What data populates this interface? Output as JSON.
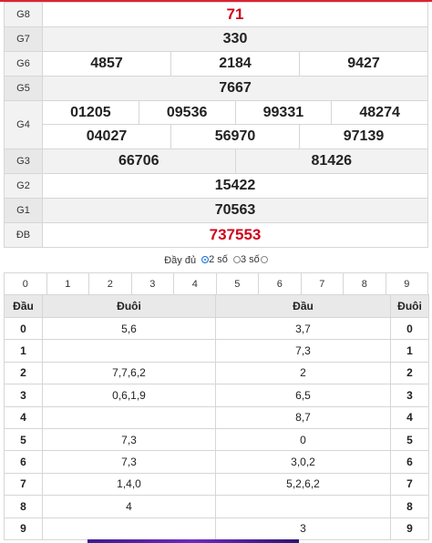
{
  "prizes": {
    "g8": {
      "label": "G8",
      "values": [
        "71"
      ]
    },
    "g7": {
      "label": "G7",
      "values": [
        "330"
      ]
    },
    "g6": {
      "label": "G6",
      "values": [
        "4857",
        "2184",
        "9427"
      ]
    },
    "g5": {
      "label": "G5",
      "values": [
        "7667"
      ]
    },
    "g4": {
      "label": "G4",
      "values": [
        "01205",
        "09536",
        "99331",
        "48274",
        "04027",
        "56970",
        "97139"
      ]
    },
    "g3": {
      "label": "G3",
      "values": [
        "66706",
        "81426"
      ]
    },
    "g2": {
      "label": "G2",
      "values": [
        "15422"
      ]
    },
    "g1": {
      "label": "G1",
      "values": [
        "70563"
      ]
    },
    "db": {
      "label": "ĐB",
      "values": [
        "737553"
      ]
    }
  },
  "mode": {
    "full": "Đầy đủ",
    "two": "2 số",
    "three": "3 số",
    "selected": "two"
  },
  "digit_filter": [
    "0",
    "1",
    "2",
    "3",
    "4",
    "5",
    "6",
    "7",
    "8",
    "9"
  ],
  "loto": {
    "headers": {
      "dau": "Đầu",
      "duoi": "Đuôi",
      "dau2": "Đầu",
      "duoi2": "Đuôi"
    },
    "rows": [
      {
        "d": "0",
        "duoi": "5,6",
        "dau": "3,7",
        "t": "0"
      },
      {
        "d": "1",
        "duoi": "",
        "dau": "7,3",
        "t": "1"
      },
      {
        "d": "2",
        "duoi": "7,7,6,2",
        "dau": "2",
        "t": "2"
      },
      {
        "d": "3",
        "duoi": "0,6,1,9",
        "dau": "6,5",
        "t": "3"
      },
      {
        "d": "4",
        "duoi": "",
        "dau": "8,7",
        "t": "4"
      },
      {
        "d": "5",
        "duoi": "7,3",
        "dau": "0",
        "t": "5"
      },
      {
        "d": "6",
        "duoi": "7,3",
        "dau": "3,0,2",
        "t": "6"
      },
      {
        "d": "7",
        "duoi": "1,4,0",
        "dau": "5,2,6,2",
        "t": "7"
      },
      {
        "d": "8",
        "duoi": "4",
        "dau": "",
        "t": "8"
      },
      {
        "d": "9",
        "duoi": "",
        "dau": "3",
        "t": "9"
      }
    ]
  },
  "colors": {
    "special": "#d0021b",
    "accent": "#1a73e8"
  }
}
